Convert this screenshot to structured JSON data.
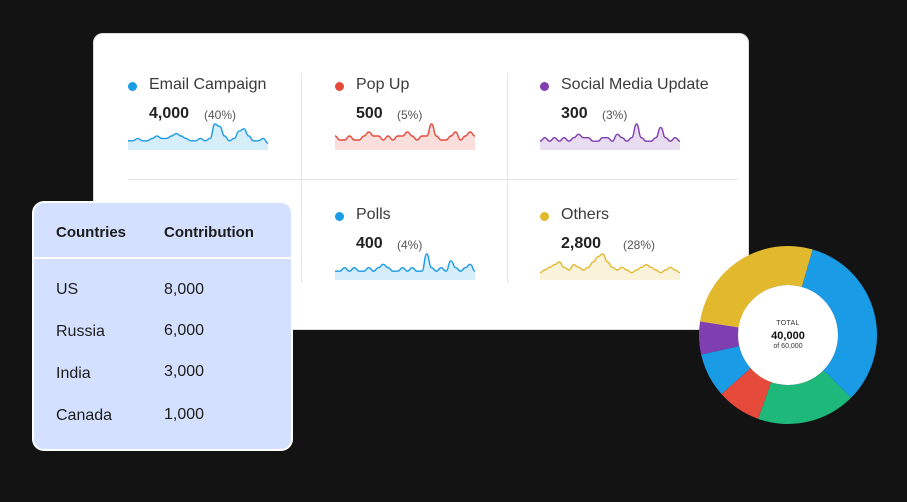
{
  "chart_data": [
    {
      "type": "line",
      "title": "Email Campaign",
      "value": "4,000",
      "percent": "(40%)",
      "color": "#1a9be6",
      "values": [
        3,
        3,
        4,
        3,
        3,
        4,
        5,
        4,
        4,
        5,
        6,
        5,
        4,
        3,
        3,
        4,
        3,
        4,
        10,
        9,
        5,
        3,
        4,
        7,
        8,
        5,
        3,
        3,
        4,
        2
      ]
    },
    {
      "type": "line",
      "title": "Pop Up",
      "value": "500",
      "percent": "(5%)",
      "color": "#e64a3b",
      "values": [
        3,
        2,
        2,
        3,
        2,
        2,
        3,
        4,
        3,
        3,
        2,
        3,
        2,
        3,
        3,
        4,
        3,
        2,
        3,
        3,
        6,
        3,
        2,
        2,
        3,
        4,
        2,
        3,
        4,
        3
      ]
    },
    {
      "type": "line",
      "title": "Social Media Update",
      "value": "300",
      "percent": "(3%)",
      "color": "#7f3fb0",
      "values": [
        2,
        3,
        2,
        3,
        2,
        3,
        2,
        3,
        4,
        3,
        3,
        2,
        2,
        3,
        3,
        2,
        4,
        3,
        2,
        3,
        7,
        3,
        2,
        2,
        3,
        6,
        3,
        2,
        3,
        2
      ]
    },
    {
      "type": "line",
      "title": "Polls",
      "value": "400",
      "percent": "(4%)",
      "color": "#1a9be6",
      "values": [
        2,
        2,
        3,
        2,
        3,
        2,
        2,
        3,
        2,
        3,
        4,
        3,
        2,
        2,
        3,
        2,
        3,
        2,
        2,
        7,
        3,
        2,
        3,
        2,
        5,
        3,
        2,
        3,
        4,
        2
      ]
    },
    {
      "type": "line",
      "title": "Others",
      "value": "2,800",
      "percent": "(28%)",
      "color": "#e2b92d",
      "values": [
        2,
        3,
        4,
        5,
        6,
        4,
        3,
        5,
        4,
        3,
        4,
        6,
        8,
        9,
        6,
        4,
        3,
        4,
        3,
        2,
        3,
        4,
        5,
        4,
        3,
        2,
        3,
        4,
        3,
        2
      ]
    },
    {
      "type": "pie",
      "center_label": "TOTAL",
      "center_value": "40,000",
      "center_sub": "of 60,000",
      "slices": [
        {
          "value": 33,
          "color": "#1a9be6"
        },
        {
          "value": 18,
          "color": "#1db87a"
        },
        {
          "value": 8,
          "color": "#e64a3b"
        },
        {
          "value": 8,
          "color": "#1a9be6"
        },
        {
          "value": 6,
          "color": "#7f3fb0"
        },
        {
          "value": 27,
          "color": "#e2b92d"
        }
      ]
    }
  ],
  "table": {
    "headers": [
      "Countries",
      "Contribution"
    ],
    "rows": [
      [
        "US",
        "8,000"
      ],
      [
        "Russia",
        "6,000"
      ],
      [
        "India",
        "3,000"
      ],
      [
        "Canada",
        "1,000"
      ]
    ]
  }
}
